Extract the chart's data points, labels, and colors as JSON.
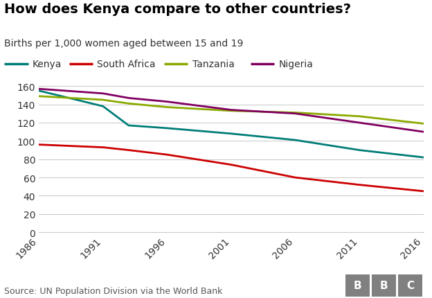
{
  "title": "How does Kenya compare to other countries?",
  "subtitle": "Births per 1,000 women aged between 15 and 19",
  "source": "Source: UN Population Division via the World Bank",
  "x_years": [
    1986,
    1991,
    1993,
    1996,
    2001,
    2006,
    2011,
    2016
  ],
  "series": {
    "Kenya": {
      "color": "#007d78",
      "values": [
        155,
        138,
        117,
        114,
        108,
        101,
        90,
        82
      ]
    },
    "South Africa": {
      "color": "#cc0000",
      "values": [
        96,
        93,
        90,
        85,
        74,
        60,
        52,
        45
      ]
    },
    "Tanzania": {
      "color": "#8aaa00",
      "values": [
        149,
        145,
        141,
        137,
        133,
        131,
        127,
        119
      ]
    },
    "Nigeria": {
      "color": "#800060",
      "values": [
        157,
        152,
        147,
        143,
        134,
        130,
        120,
        110
      ]
    }
  },
  "ylim": [
    0,
    170
  ],
  "yticks": [
    0,
    20,
    40,
    60,
    80,
    100,
    120,
    140,
    160
  ],
  "xticks": [
    1986,
    1991,
    1996,
    2001,
    2006,
    2011,
    2016
  ],
  "background_color": "#ffffff",
  "plot_background": "#ffffff",
  "grid_color": "#cccccc",
  "title_fontsize": 14,
  "subtitle_fontsize": 10,
  "legend_fontsize": 10,
  "tick_fontsize": 10,
  "source_fontsize": 9,
  "line_width": 2.0
}
